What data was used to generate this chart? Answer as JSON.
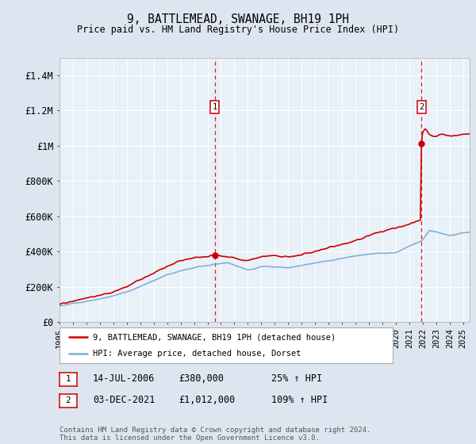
{
  "title": "9, BATTLEMEAD, SWANAGE, BH19 1PH",
  "subtitle": "Price paid vs. HM Land Registry's House Price Index (HPI)",
  "ylim": [
    0,
    1500000
  ],
  "yticks": [
    0,
    200000,
    400000,
    600000,
    800000,
    1000000,
    1200000,
    1400000
  ],
  "ytick_labels": [
    "£0",
    "£200K",
    "£400K",
    "£600K",
    "£800K",
    "£1M",
    "£1.2M",
    "£1.4M"
  ],
  "bg_color": "#dde6f0",
  "plot_bg": "#e8f0f8",
  "grid_color": "#ffffff",
  "legend_label_red": "9, BATTLEMEAD, SWANAGE, BH19 1PH (detached house)",
  "legend_label_blue": "HPI: Average price, detached house, Dorset",
  "footer": "Contains HM Land Registry data © Crown copyright and database right 2024.\nThis data is licensed under the Open Government Licence v3.0.",
  "red_color": "#cc0000",
  "blue_color": "#7aadd4",
  "marker1_x": 2006.54,
  "marker1_y": 380000,
  "marker2_x": 2021.92,
  "marker2_y": 1012000,
  "xmin": 1995,
  "xmax": 2025.5,
  "ann1_date": "14-JUL-2006",
  "ann1_price": "£380,000",
  "ann1_pct": "25% ↑ HPI",
  "ann2_date": "03-DEC-2021",
  "ann2_price": "£1,012,000",
  "ann2_pct": "109% ↑ HPI"
}
